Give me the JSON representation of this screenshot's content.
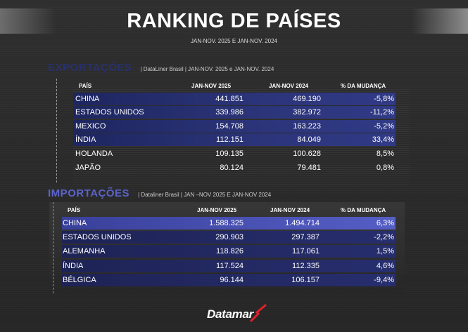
{
  "header": {
    "title": "RANKING DE PAÍSES",
    "subtitle": "JAN-NOV. 2025 E JAN-NOV. 2024"
  },
  "exportacoes": {
    "title": "EXPORTAÇÕES",
    "source": "| DataLiner Brasil | JAN-NOV. 2025 e JAN-NOV. 2024",
    "columns": [
      "PAÍS",
      "JAN-NOV 2025",
      "JAN-NOV 2024",
      "% DA MUDANÇA"
    ],
    "rows": [
      {
        "country": "CHINA",
        "y2025": "441.851",
        "y2024": "469.190",
        "change": "-5,8%"
      },
      {
        "country": "ESTADOS UNIDOS",
        "y2025": "339.986",
        "y2024": "382.972",
        "change": "-11,2%"
      },
      {
        "country": "MEXICO",
        "y2025": "154.708",
        "y2024": "163.223",
        "change": "-5,2%"
      },
      {
        "country": "ÍNDIA",
        "y2025": "112.151",
        "y2024": "84.049",
        "change": "33,4%"
      },
      {
        "country": "HOLANDA",
        "y2025": "109.135",
        "y2024": "100.628",
        "change": "8,5%"
      },
      {
        "country": "JAPÃO",
        "y2025": "80.124",
        "y2024": "79.481",
        "change": "0,8%"
      }
    ]
  },
  "importacoes": {
    "title": "IMPORTAÇÕES",
    "source": "| Dataliner Brasil | JAN –NOV  2025  E JAN-NOV 2024",
    "columns": [
      "PAÍS",
      "JAN-NOV 2025",
      "JAN-NOV 2024",
      "% DA MUDANÇA"
    ],
    "rows": [
      {
        "country": "CHINA",
        "y2025": "1.588.325",
        "y2024": "1.494.714",
        "change": "6,3%"
      },
      {
        "country": "ESTADOS UNIDOS",
        "y2025": "290.903",
        "y2024": "297.387",
        "change": "-2,2%"
      },
      {
        "country": "ALEMANHA",
        "y2025": "118.826",
        "y2024": "117.061",
        "change": "1,5%"
      },
      {
        "country": "ÍNDIA",
        "y2025": "117.524",
        "y2024": "112.335",
        "change": "4,6%"
      },
      {
        "country": "BÉLGICA",
        "y2025": "96.144",
        "y2024": "106.157",
        "change": "-9,4%"
      }
    ]
  },
  "footer": {
    "logo": "Datamar"
  }
}
